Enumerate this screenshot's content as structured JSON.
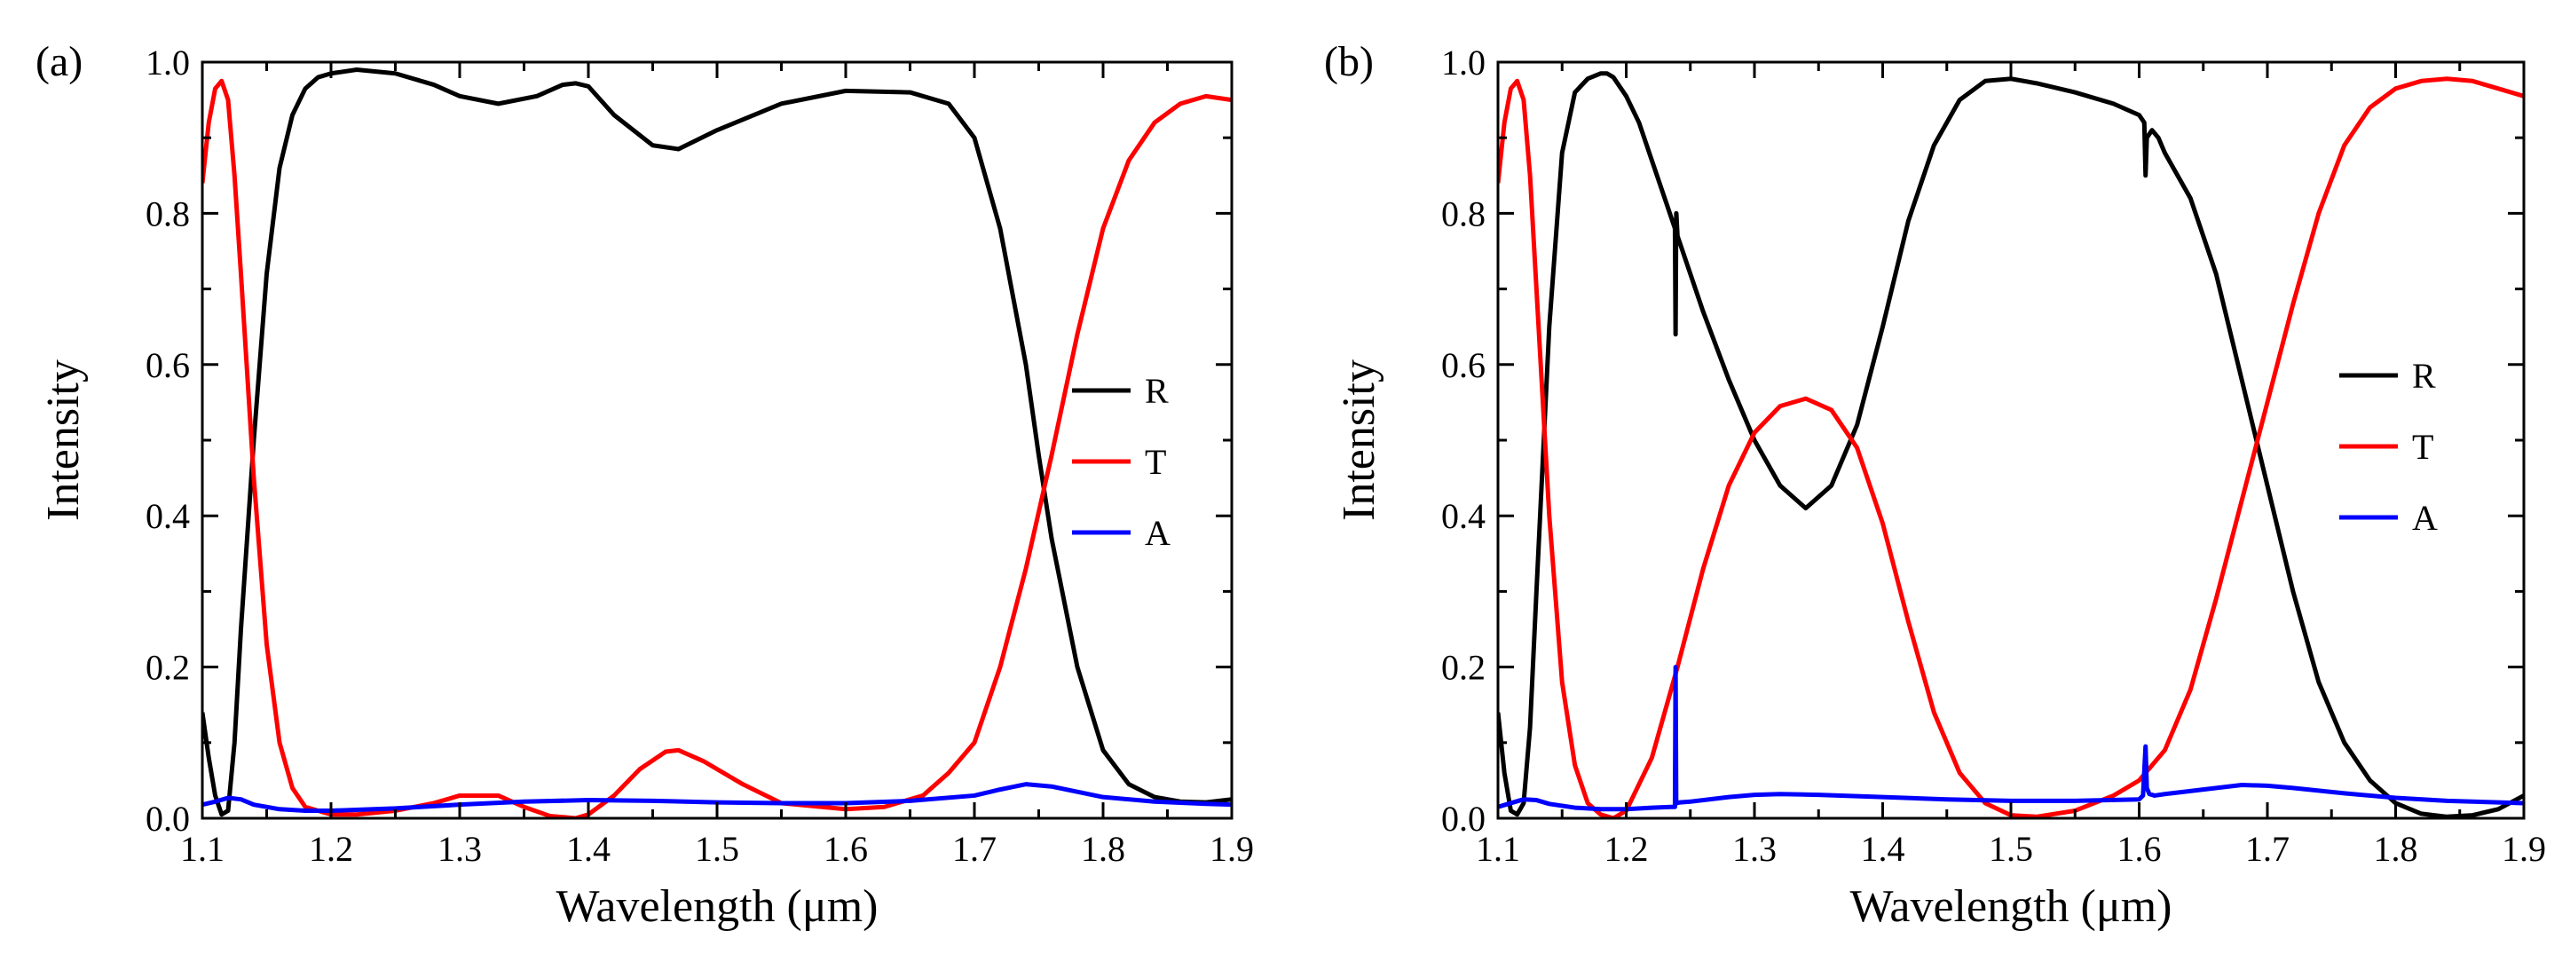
{
  "chart_data": [
    {
      "type": "line",
      "panel_label": "(a)",
      "xlabel": "Wavelength (μm)",
      "ylabel": "Intensity",
      "xlim": [
        1.1,
        1.9
      ],
      "ylim": [
        0.0,
        1.0
      ],
      "xticks": [
        "1.1",
        "1.2",
        "1.3",
        "1.4",
        "1.5",
        "1.6",
        "1.7",
        "1.8",
        "1.9"
      ],
      "yticks": [
        "0.0",
        "0.2",
        "0.4",
        "0.6",
        "0.8",
        "1.0"
      ],
      "legend_position": "right",
      "series": [
        {
          "name": "R",
          "color": "#000000",
          "x": [
            1.1,
            1.105,
            1.11,
            1.115,
            1.12,
            1.125,
            1.13,
            1.14,
            1.15,
            1.16,
            1.17,
            1.18,
            1.19,
            1.2,
            1.22,
            1.25,
            1.28,
            1.3,
            1.33,
            1.36,
            1.38,
            1.39,
            1.4,
            1.42,
            1.45,
            1.47,
            1.5,
            1.55,
            1.6,
            1.65,
            1.68,
            1.7,
            1.72,
            1.74,
            1.75,
            1.76,
            1.78,
            1.8,
            1.82,
            1.84,
            1.86,
            1.88,
            1.9
          ],
          "y": [
            0.14,
            0.08,
            0.03,
            0.005,
            0.01,
            0.1,
            0.25,
            0.5,
            0.72,
            0.86,
            0.93,
            0.965,
            0.98,
            0.985,
            0.99,
            0.985,
            0.97,
            0.955,
            0.945,
            0.955,
            0.97,
            0.972,
            0.968,
            0.93,
            0.89,
            0.885,
            0.91,
            0.945,
            0.962,
            0.96,
            0.945,
            0.9,
            0.78,
            0.6,
            0.48,
            0.37,
            0.2,
            0.09,
            0.045,
            0.028,
            0.022,
            0.021,
            0.025
          ]
        },
        {
          "name": "T",
          "color": "#ff0000",
          "x": [
            1.1,
            1.105,
            1.11,
            1.115,
            1.12,
            1.125,
            1.13,
            1.14,
            1.15,
            1.16,
            1.17,
            1.18,
            1.2,
            1.22,
            1.25,
            1.28,
            1.3,
            1.33,
            1.35,
            1.37,
            1.39,
            1.4,
            1.42,
            1.44,
            1.46,
            1.47,
            1.49,
            1.52,
            1.55,
            1.6,
            1.63,
            1.66,
            1.68,
            1.7,
            1.72,
            1.74,
            1.76,
            1.78,
            1.8,
            1.82,
            1.84,
            1.86,
            1.88,
            1.9
          ],
          "y": [
            0.84,
            0.92,
            0.965,
            0.975,
            0.95,
            0.85,
            0.72,
            0.45,
            0.23,
            0.1,
            0.04,
            0.015,
            0.005,
            0.005,
            0.01,
            0.02,
            0.03,
            0.03,
            0.015,
            0.003,
            0.0,
            0.005,
            0.03,
            0.065,
            0.088,
            0.09,
            0.075,
            0.045,
            0.02,
            0.012,
            0.015,
            0.03,
            0.06,
            0.1,
            0.2,
            0.33,
            0.48,
            0.64,
            0.78,
            0.87,
            0.92,
            0.945,
            0.955,
            0.95
          ]
        },
        {
          "name": "A",
          "color": "#0000ff",
          "x": [
            1.1,
            1.11,
            1.12,
            1.13,
            1.14,
            1.16,
            1.18,
            1.2,
            1.25,
            1.3,
            1.35,
            1.4,
            1.45,
            1.5,
            1.55,
            1.6,
            1.65,
            1.7,
            1.72,
            1.74,
            1.76,
            1.78,
            1.8,
            1.84,
            1.88,
            1.9
          ],
          "y": [
            0.018,
            0.022,
            0.027,
            0.025,
            0.018,
            0.012,
            0.01,
            0.01,
            0.013,
            0.018,
            0.022,
            0.024,
            0.023,
            0.021,
            0.02,
            0.02,
            0.023,
            0.03,
            0.038,
            0.045,
            0.042,
            0.035,
            0.028,
            0.022,
            0.019,
            0.018
          ]
        }
      ]
    },
    {
      "type": "line",
      "panel_label": "(b)",
      "xlabel": "Wavelength (μm)",
      "ylabel": "Intensity",
      "xlim": [
        1.1,
        1.9
      ],
      "ylim": [
        0.0,
        1.0
      ],
      "xticks": [
        "1.1",
        "1.2",
        "1.3",
        "1.4",
        "1.5",
        "1.6",
        "1.7",
        "1.8",
        "1.9"
      ],
      "yticks": [
        "0.0",
        "0.2",
        "0.4",
        "0.6",
        "0.8",
        "1.0"
      ],
      "legend_position": "right",
      "series": [
        {
          "name": "R",
          "color": "#000000",
          "x": [
            1.1,
            1.105,
            1.11,
            1.115,
            1.12,
            1.125,
            1.13,
            1.14,
            1.15,
            1.16,
            1.17,
            1.18,
            1.185,
            1.19,
            1.2,
            1.21,
            1.22,
            1.23,
            1.238,
            1.2385,
            1.239,
            1.2391,
            1.24,
            1.25,
            1.26,
            1.28,
            1.3,
            1.32,
            1.34,
            1.36,
            1.38,
            1.4,
            1.42,
            1.44,
            1.46,
            1.48,
            1.5,
            1.52,
            1.55,
            1.58,
            1.6,
            1.604,
            1.605,
            1.606,
            1.61,
            1.615,
            1.62,
            1.64,
            1.66,
            1.68,
            1.7,
            1.72,
            1.74,
            1.76,
            1.78,
            1.8,
            1.82,
            1.84,
            1.86,
            1.88,
            1.9
          ],
          "y": [
            0.14,
            0.06,
            0.01,
            0.005,
            0.02,
            0.12,
            0.3,
            0.65,
            0.88,
            0.96,
            0.978,
            0.985,
            0.985,
            0.98,
            0.955,
            0.92,
            0.87,
            0.82,
            0.78,
            0.64,
            0.8,
            0.8,
            0.77,
            0.72,
            0.67,
            0.58,
            0.5,
            0.44,
            0.41,
            0.44,
            0.52,
            0.65,
            0.79,
            0.89,
            0.95,
            0.975,
            0.978,
            0.972,
            0.96,
            0.945,
            0.93,
            0.92,
            0.85,
            0.9,
            0.91,
            0.9,
            0.88,
            0.82,
            0.72,
            0.58,
            0.44,
            0.3,
            0.18,
            0.1,
            0.05,
            0.02,
            0.006,
            0.002,
            0.004,
            0.012,
            0.03
          ]
        },
        {
          "name": "T",
          "color": "#ff0000",
          "x": [
            1.1,
            1.105,
            1.11,
            1.115,
            1.12,
            1.125,
            1.13,
            1.14,
            1.15,
            1.16,
            1.17,
            1.18,
            1.19,
            1.2,
            1.22,
            1.24,
            1.26,
            1.28,
            1.3,
            1.32,
            1.34,
            1.36,
            1.38,
            1.4,
            1.42,
            1.44,
            1.46,
            1.48,
            1.5,
            1.52,
            1.55,
            1.58,
            1.6,
            1.62,
            1.64,
            1.66,
            1.68,
            1.7,
            1.72,
            1.74,
            1.76,
            1.78,
            1.8,
            1.82,
            1.84,
            1.86,
            1.88,
            1.9
          ],
          "y": [
            0.84,
            0.92,
            0.965,
            0.975,
            0.95,
            0.85,
            0.7,
            0.4,
            0.18,
            0.07,
            0.02,
            0.005,
            0.0,
            0.01,
            0.08,
            0.2,
            0.33,
            0.44,
            0.51,
            0.545,
            0.555,
            0.54,
            0.49,
            0.39,
            0.26,
            0.14,
            0.06,
            0.02,
            0.004,
            0.002,
            0.01,
            0.03,
            0.05,
            0.09,
            0.17,
            0.29,
            0.42,
            0.55,
            0.68,
            0.8,
            0.89,
            0.94,
            0.965,
            0.975,
            0.978,
            0.975,
            0.965,
            0.955
          ]
        },
        {
          "name": "A",
          "color": "#0000ff",
          "x": [
            1.1,
            1.11,
            1.12,
            1.13,
            1.14,
            1.16,
            1.18,
            1.2,
            1.22,
            1.235,
            1.238,
            1.2385,
            1.239,
            1.2395,
            1.242,
            1.25,
            1.28,
            1.3,
            1.32,
            1.35,
            1.4,
            1.45,
            1.5,
            1.55,
            1.6,
            1.603,
            1.605,
            1.606,
            1.608,
            1.612,
            1.62,
            1.65,
            1.68,
            1.7,
            1.72,
            1.76,
            1.8,
            1.84,
            1.88,
            1.9
          ],
          "y": [
            0.015,
            0.02,
            0.025,
            0.024,
            0.019,
            0.014,
            0.012,
            0.012,
            0.014,
            0.015,
            0.015,
            0.2,
            0.02,
            0.02,
            0.021,
            0.022,
            0.028,
            0.031,
            0.032,
            0.031,
            0.028,
            0.025,
            0.023,
            0.023,
            0.025,
            0.03,
            0.095,
            0.04,
            0.032,
            0.03,
            0.032,
            0.038,
            0.044,
            0.043,
            0.04,
            0.033,
            0.027,
            0.023,
            0.021,
            0.02
          ]
        }
      ]
    }
  ]
}
